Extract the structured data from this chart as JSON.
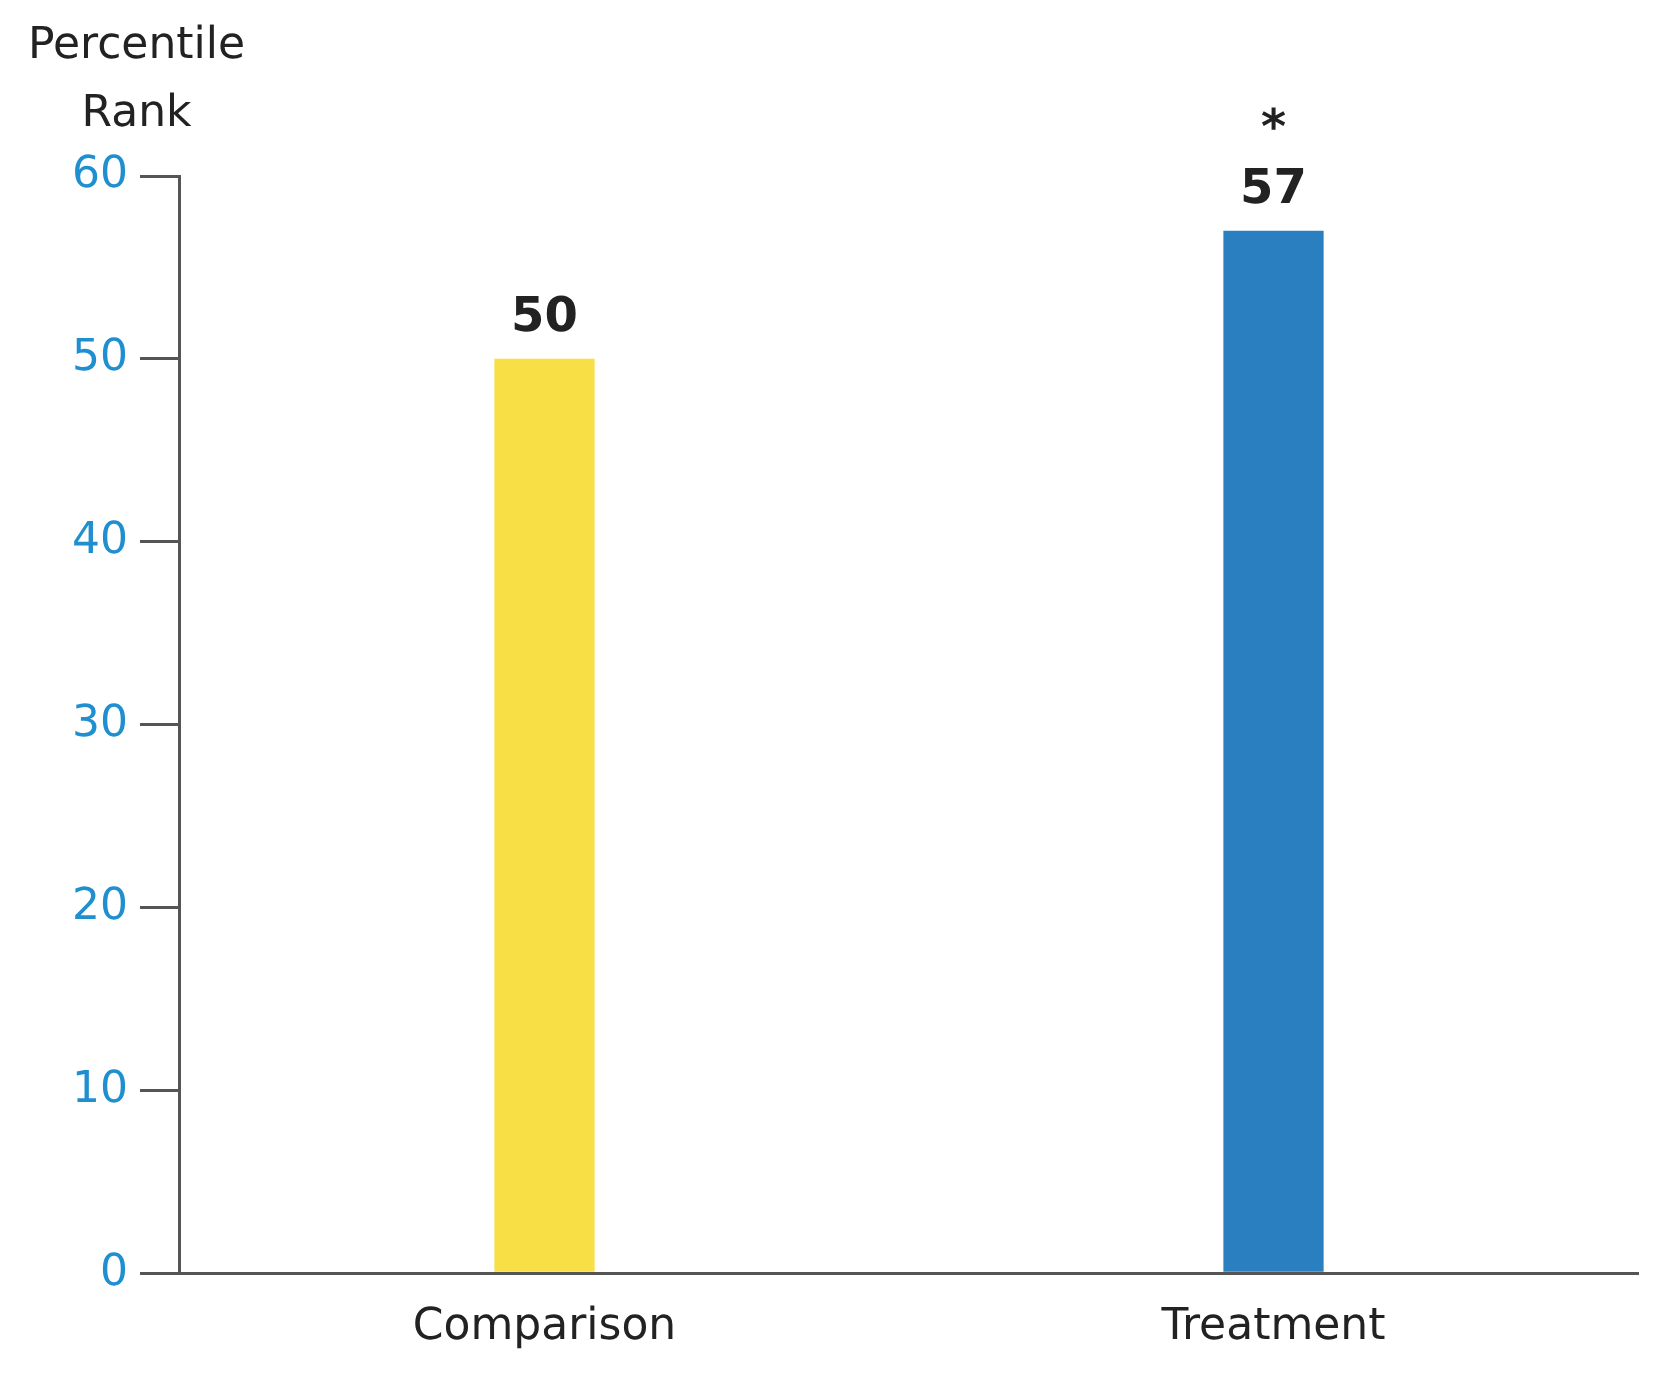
{
  "chart_data": {
    "type": "bar",
    "ylabel": "Percentile\nRank",
    "categories": [
      "Comparison",
      "Treatment"
    ],
    "values": [
      50,
      57
    ],
    "colors": [
      "#f7df45",
      "#2a7fc1"
    ],
    "ylim": [
      0,
      60
    ],
    "yticks": [
      0,
      10,
      20,
      30,
      40,
      50,
      60
    ],
    "grid": false,
    "legend": false,
    "data_labels": true,
    "annotations": [
      {
        "text": "*",
        "x": "Treatment",
        "y": 57
      }
    ]
  }
}
